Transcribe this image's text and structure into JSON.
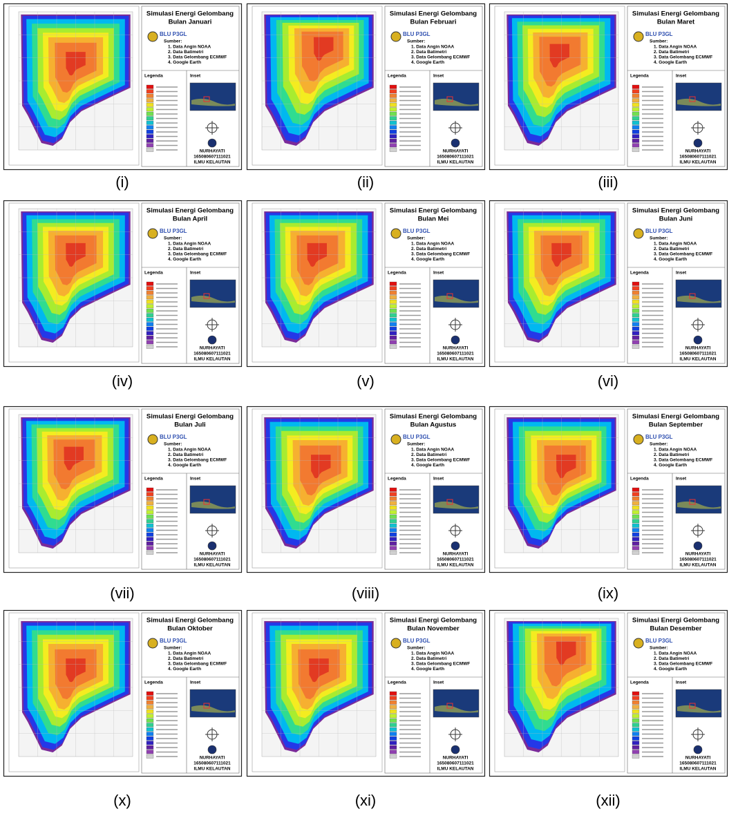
{
  "title": "Simulasi Energi Gelombang",
  "panels": [
    {
      "month": "Bulan Januari",
      "caption": "(i)"
    },
    {
      "month": "Bulan Februari",
      "caption": "(ii)"
    },
    {
      "month": "Bulan Maret",
      "caption": "(iii)"
    },
    {
      "month": "Bulan April",
      "caption": "(iv)"
    },
    {
      "month": "Bulan Mei",
      "caption": "(v)"
    },
    {
      "month": "Bulan Juni",
      "caption": "(vi)"
    },
    {
      "month": "Bulan Juli",
      "caption": "(vii)"
    },
    {
      "month": "Bulan Agustus",
      "caption": "(viii)"
    },
    {
      "month": "Bulan September",
      "caption": "(ix)"
    },
    {
      "month": "Bulan Oktober",
      "caption": "(x)"
    },
    {
      "month": "Bulan November",
      "caption": "(xi)"
    },
    {
      "month": "Bulan Desember",
      "caption": "(xii)"
    }
  ],
  "logo_text": "BLU P3GL",
  "sources_heading": "Sumber:",
  "sources": [
    "1. Data Angin NOAA",
    "2. Data Batimetri",
    "3. Data Gelombang ECMWF",
    "4. Google Earth"
  ],
  "legend_heading": "Legenda",
  "inset_heading": "Inset",
  "author": "NURHAYATI",
  "nim": "165080607111021",
  "department": "ILMU KELAUTAN"
}
